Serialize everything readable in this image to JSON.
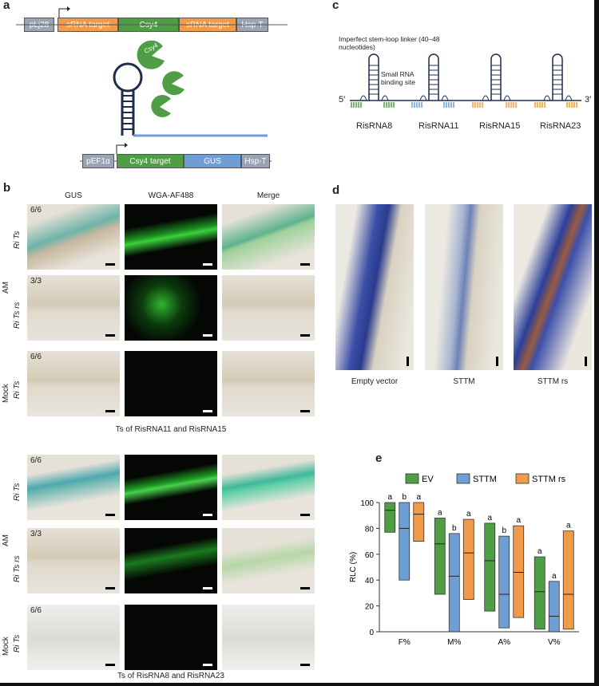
{
  "panel_labels": {
    "a": "a",
    "b": "b",
    "c": "c",
    "d": "d",
    "e": "e"
  },
  "panel_a": {
    "top_construct": [
      "pLj28",
      "sRNA target",
      "Csy4",
      "sRNA target",
      "Hsp-T"
    ],
    "bottom_construct": [
      "pEF1α",
      "Csy4 target",
      "GUS",
      "Hsp-T"
    ],
    "protein_label": "Csy4"
  },
  "panel_b": {
    "headers": [
      "GUS",
      "WGA-AF488",
      "Merge"
    ],
    "group_label": "AM",
    "mock_label": "Mock",
    "top_block": {
      "rows": [
        {
          "ratio": "6/6",
          "label": "Ri Ts"
        },
        {
          "ratio": "3/3",
          "label": "Ri Ts rs"
        },
        {
          "ratio": "6/6",
          "label": "Ri Ts"
        }
      ],
      "caption": "Ts of RisRNA11 and RisRNA15"
    },
    "bottom_block": {
      "rows": [
        {
          "ratio": "6/6",
          "label": "Ri Ts"
        },
        {
          "ratio": "3/3",
          "label": "Ri Ts rs"
        },
        {
          "ratio": "6/6",
          "label": "Ri Ts"
        }
      ],
      "caption": "Ts of RisRNA8 and RisRNA23"
    }
  },
  "panel_c": {
    "annotation1": "Imperfect stem-loop linker (40–48 nucleotides)",
    "annotation2": "Small RNA binding site",
    "five_prime": "5′",
    "three_prime": "3′",
    "labels": [
      "RisRNA8",
      "RisRNA11",
      "RisRNA15",
      "RisRNA23"
    ]
  },
  "panel_d": {
    "labels": [
      "Empty vector",
      "STTM",
      "STTM rs"
    ]
  },
  "chart_data": {
    "type": "bar",
    "title": "",
    "xlabel": "",
    "ylabel": "RLC (%)",
    "ylim": [
      0,
      100
    ],
    "yticks": [
      0,
      20,
      40,
      60,
      80,
      100
    ],
    "categories": [
      "F%",
      "M%",
      "A%",
      "V%"
    ],
    "legend": [
      "EV",
      "STTM",
      "STTM rs"
    ],
    "legend_position": "top",
    "colors": {
      "EV": "#4f9e46",
      "STTM": "#6e9ed3",
      "STTM rs": "#f09a4a"
    },
    "series": [
      {
        "name": "EV",
        "min": [
          77,
          29,
          16,
          2
        ],
        "max": [
          100,
          88,
          84,
          58
        ],
        "median": [
          94,
          68,
          55,
          31
        ],
        "letters": [
          "a",
          "a",
          "a",
          "a"
        ]
      },
      {
        "name": "STTM",
        "min": [
          40,
          0,
          3,
          0
        ],
        "max": [
          100,
          76,
          74,
          39
        ],
        "median": [
          80,
          43,
          29,
          12
        ],
        "letters": [
          "b",
          "b",
          "b",
          "a"
        ]
      },
      {
        "name": "STTM rs",
        "min": [
          70,
          25,
          11,
          2
        ],
        "max": [
          100,
          87,
          82,
          78
        ],
        "median": [
          91,
          61,
          46,
          29
        ],
        "letters": [
          "a",
          "a",
          "a",
          "a"
        ]
      }
    ]
  }
}
